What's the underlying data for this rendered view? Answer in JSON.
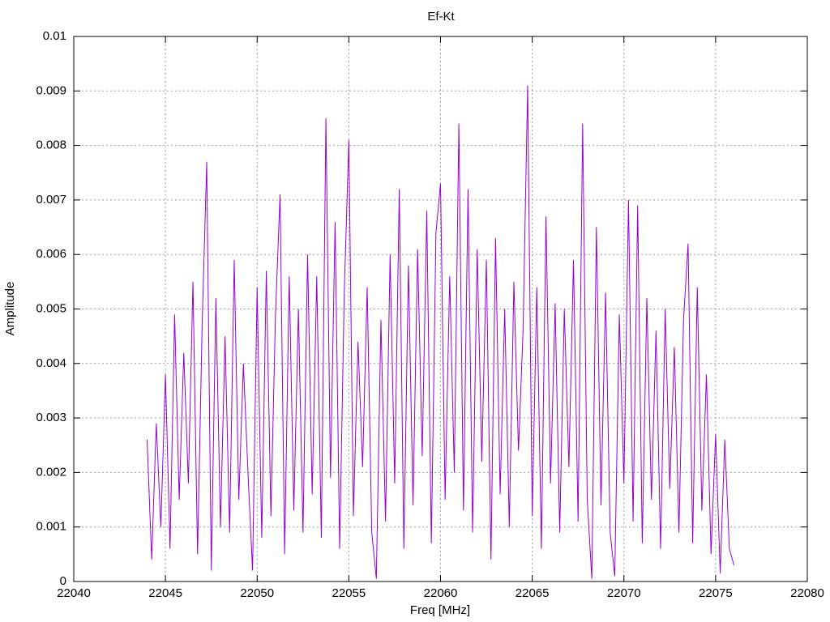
{
  "chart_data": {
    "type": "line",
    "title": "Ef-Kt",
    "xlabel": "Freq [MHz]",
    "ylabel": "Amplitude",
    "xlim": [
      22040,
      22080
    ],
    "xticks": [
      22040,
      22045,
      22050,
      22055,
      22060,
      22065,
      22070,
      22075,
      22080
    ],
    "ylim": [
      0,
      0.01
    ],
    "yticks": [
      0,
      0.001,
      0.002,
      0.003,
      0.004,
      0.005,
      0.006,
      0.007,
      0.008,
      0.009,
      0.01
    ],
    "grid": true,
    "color": "#9400d3",
    "x": [
      22044,
      22044.25,
      22044.5,
      22044.75,
      22045,
      22045.25,
      22045.5,
      22045.75,
      22046,
      22046.25,
      22046.5,
      22046.75,
      22047,
      22047.25,
      22047.5,
      22047.75,
      22048,
      22048.25,
      22048.5,
      22048.75,
      22049,
      22049.25,
      22049.5,
      22049.75,
      22050,
      22050.25,
      22050.5,
      22050.75,
      22051,
      22051.25,
      22051.5,
      22051.75,
      22052,
      22052.25,
      22052.5,
      22052.75,
      22053,
      22053.25,
      22053.5,
      22053.75,
      22054,
      22054.25,
      22054.5,
      22054.75,
      22055,
      22055.25,
      22055.5,
      22055.75,
      22056,
      22056.25,
      22056.5,
      22056.75,
      22057,
      22057.25,
      22057.5,
      22057.75,
      22058,
      22058.25,
      22058.5,
      22058.75,
      22059,
      22059.25,
      22059.5,
      22059.75,
      22060,
      22060.25,
      22060.5,
      22060.75,
      22061,
      22061.25,
      22061.5,
      22061.75,
      22062,
      22062.25,
      22062.5,
      22062.75,
      22063,
      22063.25,
      22063.5,
      22063.75,
      22064,
      22064.25,
      22064.5,
      22064.75,
      22065,
      22065.25,
      22065.5,
      22065.75,
      22066,
      22066.25,
      22066.5,
      22066.75,
      22067,
      22067.25,
      22067.5,
      22067.75,
      22068,
      22068.25,
      22068.5,
      22068.75,
      22069,
      22069.25,
      22069.5,
      22069.75,
      22070,
      22070.25,
      22070.5,
      22070.75,
      22071,
      22071.25,
      22071.5,
      22071.75,
      22072,
      22072.25,
      22072.5,
      22072.75,
      22073,
      22073.25,
      22073.5,
      22073.75,
      22074,
      22074.25,
      22074.5,
      22074.75,
      22075,
      22075.25,
      22075.5,
      22075.75,
      22076
    ],
    "values": [
      0.0026,
      0.0004,
      0.0029,
      0.001,
      0.0038,
      0.0006,
      0.0049,
      0.0015,
      0.0042,
      0.0018,
      0.0055,
      0.0005,
      0.0047,
      0.0077,
      0.0002,
      0.0052,
      0.001,
      0.0045,
      0.0009,
      0.0059,
      0.0015,
      0.004,
      0.002,
      0.0002,
      0.0054,
      0.0008,
      0.0057,
      0.0012,
      0.0049,
      0.0071,
      0.0005,
      0.0056,
      0.0013,
      0.005,
      0.0009,
      0.006,
      0.0016,
      0.0056,
      0.0008,
      0.0085,
      0.0019,
      0.0066,
      0.0006,
      0.0053,
      0.0081,
      0.0012,
      0.0044,
      0.0021,
      0.0054,
      0.0009,
      5e-05,
      0.0048,
      0.0011,
      0.006,
      0.0018,
      0.0072,
      0.0006,
      0.0058,
      0.0014,
      0.0061,
      0.0023,
      0.0068,
      0.0007,
      0.0064,
      0.0073,
      0.0015,
      0.0056,
      0.002,
      0.0084,
      0.0013,
      0.0072,
      0.0009,
      0.0061,
      0.0022,
      0.0059,
      0.0004,
      0.0063,
      0.0016,
      0.005,
      0.001,
      0.0055,
      0.0024,
      0.0046,
      0.0091,
      0.0012,
      0.0054,
      0.0006,
      0.0067,
      0.0018,
      0.0051,
      0.0009,
      0.005,
      0.0021,
      0.0059,
      0.0011,
      0.0084,
      0.0015,
      5e-05,
      0.0065,
      0.0014,
      0.0053,
      0.0009,
      0.0001,
      0.0049,
      0.0018,
      0.007,
      0.0011,
      0.0069,
      0.0007,
      0.0052,
      0.0015,
      0.0046,
      0.0006,
      0.005,
      0.0017,
      0.0043,
      0.0009,
      0.0048,
      0.0062,
      0.0007,
      0.0054,
      0.0013,
      0.0038,
      0.0005,
      0.0027,
      0.00015,
      0.0026,
      0.0006,
      0.0003
    ]
  }
}
